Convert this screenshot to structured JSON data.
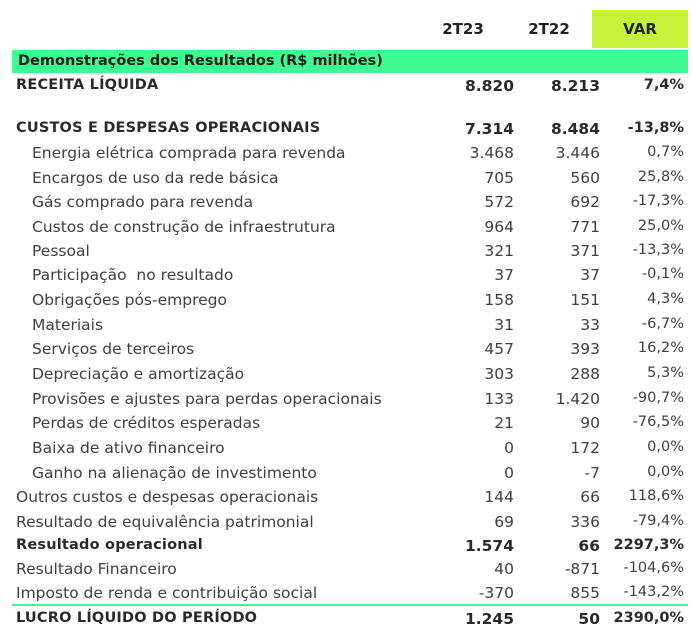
{
  "header": {
    "col1": "2T23",
    "col2": "2T22",
    "col3": "VAR"
  },
  "section_title": "Demonstrações dos Resultados (R$ milhões)",
  "rows": [
    {
      "label": "RECEITA LÍQUIDA",
      "v1": "8.820",
      "v2": "8.213",
      "v3": "7,4%"
    },
    {
      "label": "CUSTOS E DESPESAS OPERACIONAIS",
      "v1": "7.314",
      "v2": "8.484",
      "v3": "-13,8%"
    },
    {
      "label": "Energia elétrica comprada para revenda",
      "v1": "3.468",
      "v2": "3.446",
      "v3": "0,7%"
    },
    {
      "label": "Encargos de uso da rede básica",
      "v1": "705",
      "v2": "560",
      "v3": "25,8%"
    },
    {
      "label": "Gás comprado para revenda",
      "v1": "572",
      "v2": "692",
      "v3": "-17,3%"
    },
    {
      "label": "Custos de construção de infraestrutura",
      "v1": "964",
      "v2": "771",
      "v3": "25,0%"
    },
    {
      "label": "Pessoal",
      "v1": "321",
      "v2": "371",
      "v3": "-13,3%"
    },
    {
      "label": "Participação  no resultado",
      "v1": "37",
      "v2": "37",
      "v3": "-0,1%"
    },
    {
      "label": "Obrigações pós-emprego",
      "v1": "158",
      "v2": "151",
      "v3": "4,3%"
    },
    {
      "label": "Materiais",
      "v1": "31",
      "v2": "33",
      "v3": "-6,7%"
    },
    {
      "label": "Serviços de terceiros",
      "v1": "457",
      "v2": "393",
      "v3": "16,2%"
    },
    {
      "label": "Depreciação e amortização",
      "v1": "303",
      "v2": "288",
      "v3": "5,3%"
    },
    {
      "label": "Provisões e ajustes para perdas operacionais",
      "v1": "133",
      "v2": "1.420",
      "v3": "-90,7%"
    },
    {
      "label": "Perdas de créditos esperadas",
      "v1": "21",
      "v2": "90",
      "v3": "-76,5%"
    },
    {
      "label": "Baixa de ativo financeiro",
      "v1": "0",
      "v2": "172",
      "v3": "0,0%"
    },
    {
      "label": "Ganho na alienação de investimento",
      "v1": "0",
      "v2": "-7",
      "v3": "0,0%"
    },
    {
      "label": "Outros custos e despesas operacionais",
      "v1": "144",
      "v2": "66",
      "v3": "118,6%"
    },
    {
      "label": "Resultado de equivalência patrimonial",
      "v1": "69",
      "v2": "336",
      "v3": "-79,4%"
    },
    {
      "label": "Resultado operacional",
      "v1": "1.574",
      "v2": "66",
      "v3": "2297,3%"
    },
    {
      "label": "Resultado Financeiro",
      "v1": "40",
      "v2": "-871",
      "v3": "-104,6%"
    },
    {
      "label": "Imposto de renda e contribuição social",
      "v1": "-370",
      "v2": "855",
      "v3": "-143,2%"
    },
    {
      "label": "LUCRO LÍQUIDO DO PERÍODO",
      "v1": "1.245",
      "v2": "50",
      "v3": "2390,0%"
    }
  ]
}
